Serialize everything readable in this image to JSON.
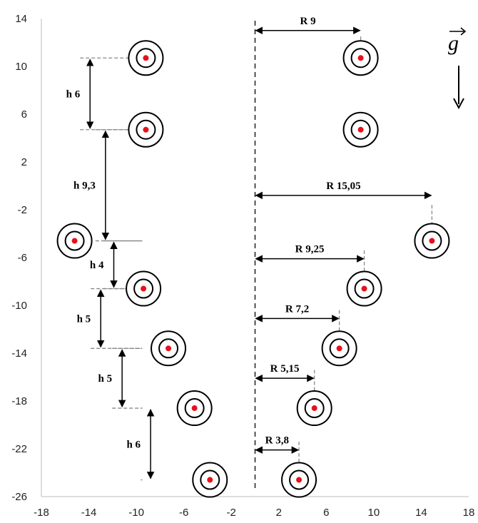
{
  "chart_data": {
    "type": "scatter",
    "title": "",
    "xlabel": "",
    "ylabel": "",
    "xlim": [
      -18,
      18
    ],
    "ylim": [
      -26,
      14
    ],
    "x_ticks": [
      -18,
      -14,
      -10,
      -6,
      -2,
      2,
      6,
      10,
      14,
      18
    ],
    "y_ticks": [
      14,
      10,
      6,
      2,
      -2,
      -6,
      -10,
      -14,
      -18,
      -22,
      -26
    ],
    "center_line_x": 0,
    "grid": false,
    "point_color": "#e8101a",
    "left_points": [
      {
        "x": -9.2,
        "y": 10.7
      },
      {
        "x": -9.2,
        "y": 4.7
      },
      {
        "x": -15.2,
        "y": -4.6
      },
      {
        "x": -9.4,
        "y": -8.6
      },
      {
        "x": -7.3,
        "y": -13.6
      },
      {
        "x": -5.1,
        "y": -18.6
      },
      {
        "x": -3.8,
        "y": -24.6
      }
    ],
    "right_points": [
      {
        "x": 8.9,
        "y": 10.7
      },
      {
        "x": 8.9,
        "y": 4.7
      },
      {
        "x": 14.9,
        "y": -4.6
      },
      {
        "x": 9.2,
        "y": -8.6
      },
      {
        "x": 7.1,
        "y": -13.6
      },
      {
        "x": 5.0,
        "y": -18.6
      },
      {
        "x": 3.7,
        "y": -24.6
      }
    ],
    "height_annotations": [
      {
        "label": "h 6",
        "x": -13.9,
        "y1": 10.7,
        "y2": 4.7
      },
      {
        "label": "h 9,3",
        "x": -12.6,
        "y1": 4.7,
        "y2": -4.6
      },
      {
        "label": "h 4",
        "x": -11.9,
        "y1": -4.6,
        "y2": -8.6
      },
      {
        "label": "h 5",
        "x": -13.0,
        "y1": -8.6,
        "y2": -13.6
      },
      {
        "label": "h 5",
        "x": -11.2,
        "y1": -13.6,
        "y2": -18.6
      },
      {
        "label": "h 6",
        "x": -8.8,
        "y1": -18.6,
        "y2": -24.6
      }
    ],
    "radius_annotations": [
      {
        "label": "R 9",
        "x_end": 8.9,
        "y": 13.0
      },
      {
        "label": "R 15,05",
        "x_end": 14.9,
        "y": -0.8
      },
      {
        "label": "R 9,25",
        "x_end": 9.2,
        "y": -6.1
      },
      {
        "label": "R 7,2",
        "x_end": 7.1,
        "y": -11.1
      },
      {
        "label": "R 5,15",
        "x_end": 5.0,
        "y": -16.1
      },
      {
        "label": "R 3,8",
        "x_end": 3.7,
        "y": -22.1
      }
    ],
    "gravity_label": "g"
  }
}
